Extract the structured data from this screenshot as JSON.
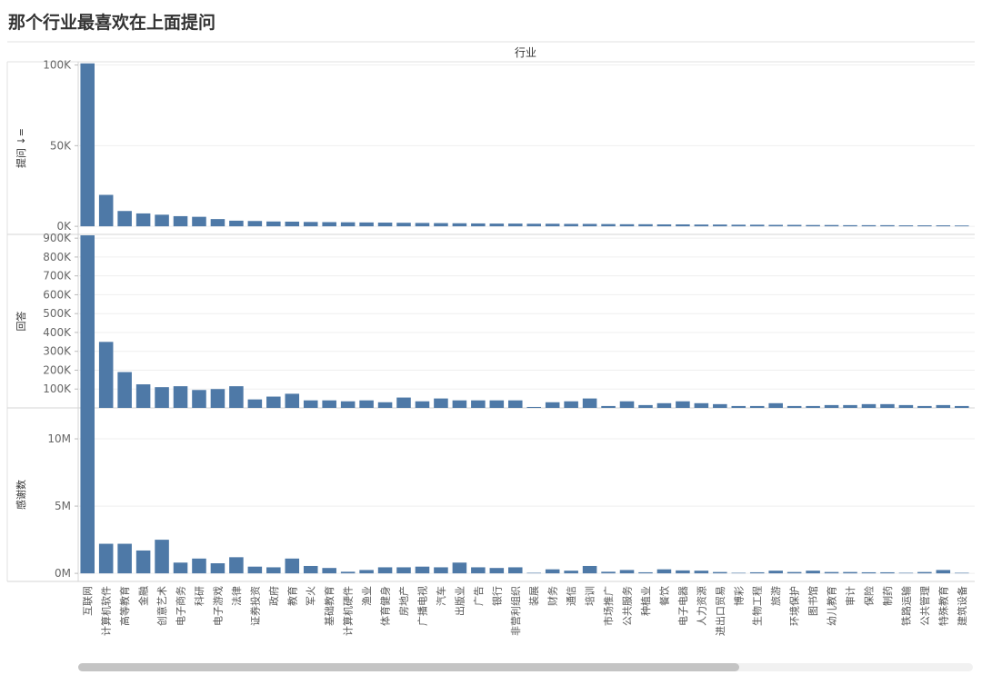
{
  "page": {
    "title": "那个行业最喜欢在上面提问"
  },
  "chart_data": {
    "type": "bar",
    "header": "行业",
    "categories": [
      "互联网",
      "计算机软件",
      "高等教育",
      "金融",
      "创意艺术",
      "电子商务",
      "科研",
      "电子游戏",
      "法律",
      "证券投资",
      "政府",
      "教育",
      "军火",
      "基础教育",
      "计算机硬件",
      "渔业",
      "体育健身",
      "房地产",
      "广播电视",
      "汽车",
      "出版业",
      "广告",
      "银行",
      "非营利组织",
      "装展",
      "财务",
      "通信",
      "培训",
      "市场推广",
      "公共服务",
      "种植业",
      "餐饮",
      "电子电器",
      "人力资源",
      "进出口贸易",
      "博彩",
      "生物工程",
      "旅游",
      "环境保护",
      "图书馆",
      "幼儿教育",
      "审计",
      "保险",
      "制药",
      "铁路运输",
      "公共管理",
      "特殊教育",
      "建筑设备"
    ],
    "series": [
      {
        "name": "提问",
        "ylabel": "提问 ↓=",
        "ylim": [
          -5000,
          102000
        ],
        "ticks": [
          0,
          50000,
          100000
        ],
        "tick_labels": [
          "0K",
          "50K",
          "100K"
        ],
        "values": [
          101000,
          19500,
          9500,
          8000,
          7200,
          6300,
          5900,
          4500,
          3500,
          3300,
          3000,
          2900,
          2700,
          2600,
          2500,
          2400,
          2300,
          2200,
          2100,
          2000,
          1900,
          1800,
          1700,
          1700,
          1600,
          1600,
          1500,
          1500,
          1400,
          1300,
          1300,
          1200,
          1200,
          1100,
          1100,
          1000,
          1000,
          900,
          900,
          800,
          800,
          700,
          700,
          700,
          600,
          600,
          600,
          500
        ]
      },
      {
        "name": "回答",
        "ylabel": "回答",
        "ylim": [
          0,
          920000
        ],
        "ticks": [
          100000,
          200000,
          300000,
          400000,
          500000,
          600000,
          700000,
          800000,
          900000
        ],
        "tick_labels": [
          "100K",
          "200K",
          "300K",
          "400K",
          "500K",
          "600K",
          "700K",
          "800K",
          "900K"
        ],
        "values": [
          915000,
          350000,
          190000,
          125000,
          110000,
          115000,
          95000,
          100000,
          115000,
          45000,
          60000,
          75000,
          40000,
          40000,
          35000,
          40000,
          30000,
          55000,
          35000,
          50000,
          40000,
          40000,
          40000,
          40000,
          5000,
          30000,
          35000,
          50000,
          10000,
          35000,
          15000,
          25000,
          35000,
          25000,
          20000,
          10000,
          10000,
          25000,
          10000,
          10000,
          15000,
          15000,
          20000,
          20000,
          15000,
          10000,
          15000,
          10000
        ]
      },
      {
        "name": "感谢数",
        "ylabel": "感谢数",
        "ylim": [
          -600000,
          12300000
        ],
        "ticks": [
          0,
          5000000,
          10000000
        ],
        "tick_labels": [
          "0M",
          "5M",
          "10M"
        ],
        "values": [
          12300000,
          2200000,
          2200000,
          1700000,
          2500000,
          800000,
          1100000,
          750000,
          1200000,
          500000,
          450000,
          1100000,
          550000,
          400000,
          120000,
          250000,
          450000,
          450000,
          500000,
          450000,
          800000,
          450000,
          400000,
          450000,
          30000,
          300000,
          200000,
          550000,
          120000,
          250000,
          80000,
          300000,
          220000,
          200000,
          100000,
          30000,
          80000,
          200000,
          100000,
          200000,
          100000,
          100000,
          80000,
          80000,
          40000,
          100000,
          250000,
          30000
        ]
      }
    ]
  }
}
